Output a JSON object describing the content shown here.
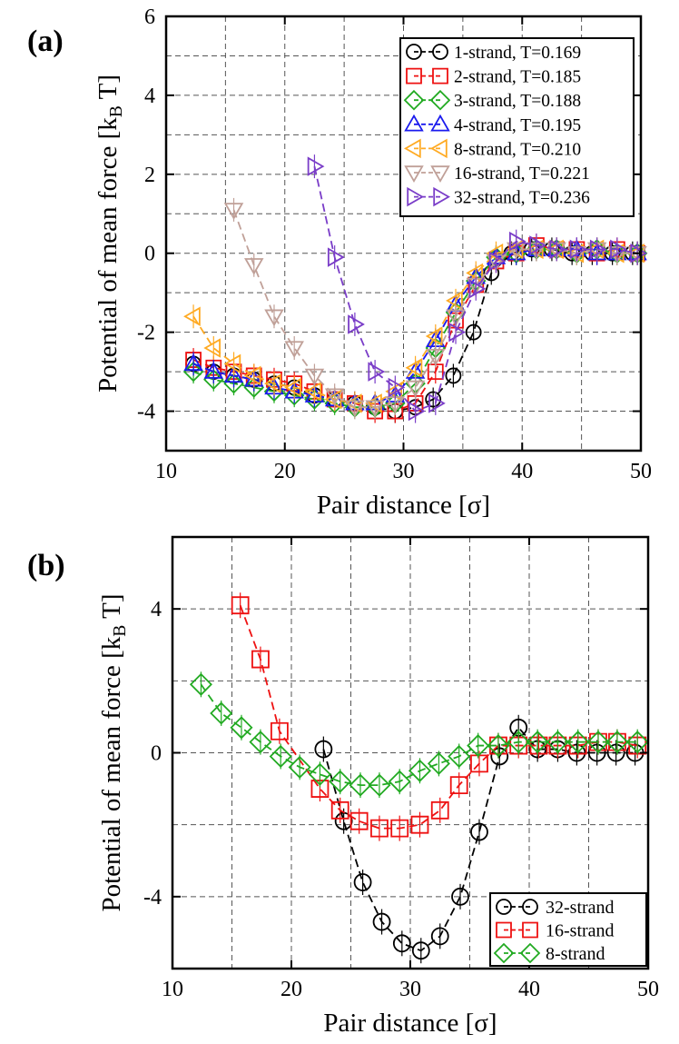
{
  "chart_data": [
    {
      "panel": "a",
      "panel_label": "(a)",
      "type": "line",
      "xlabel": "Pair distance [σ]",
      "ylabel_main": "Potential of mean force [k",
      "ylabel_sub": "B",
      "ylabel_end": " T]",
      "xlim": [
        10,
        50
      ],
      "ylim": [
        -5,
        6
      ],
      "xticks": [
        10,
        20,
        30,
        40,
        50
      ],
      "xtick_labels": [
        "10",
        "20",
        "30",
        "40",
        "50"
      ],
      "yticks": [
        -4,
        -2,
        0,
        2,
        4,
        6
      ],
      "ytick_labels": [
        "-4",
        "-2",
        "0",
        "2",
        "4",
        "6"
      ],
      "grid_x": [
        15,
        20,
        25,
        30,
        35,
        40,
        45
      ],
      "grid_y": [
        -4,
        -3,
        -2,
        -1,
        0,
        1,
        2,
        3,
        4,
        5
      ],
      "legend": "top-right",
      "series": [
        {
          "name": "1-strand, T=0.169",
          "color": "#000000",
          "marker": "circle",
          "x": [
            12.3,
            14.0,
            15.7,
            17.4,
            19.1,
            20.8,
            22.5,
            24.2,
            25.9,
            27.6,
            29.3,
            31.0,
            32.5,
            34.2,
            35.9,
            37.4,
            39.1,
            40.8,
            42.5,
            44.2,
            45.9,
            47.6,
            49.3
          ],
          "y": [
            -2.8,
            -3.0,
            -3.1,
            -3.2,
            -3.3,
            -3.4,
            -3.6,
            -3.7,
            -3.8,
            -3.9,
            -4.0,
            -3.9,
            -3.7,
            -3.1,
            -2.0,
            -0.5,
            0.0,
            0.1,
            0.1,
            0.0,
            0.0,
            0.0,
            0.0
          ]
        },
        {
          "name": "2-strand, T=0.185",
          "color": "#ee1111",
          "marker": "square",
          "x": [
            12.3,
            14.0,
            15.7,
            17.4,
            19.1,
            20.8,
            22.5,
            24.2,
            25.9,
            27.6,
            29.3,
            31.0,
            32.7,
            34.4,
            36.1,
            37.8,
            39.5,
            41.2,
            42.9,
            44.6,
            46.3,
            48.0,
            49.7
          ],
          "y": [
            -2.7,
            -2.9,
            -3.0,
            -3.1,
            -3.2,
            -3.3,
            -3.5,
            -3.7,
            -3.8,
            -4.0,
            -4.0,
            -3.8,
            -3.0,
            -1.7,
            -0.8,
            -0.2,
            0.0,
            0.2,
            0.1,
            0.1,
            0.0,
            0.1,
            0.0
          ]
        },
        {
          "name": "3-strand, T=0.188",
          "color": "#22aa22",
          "marker": "diamond",
          "x": [
            12.3,
            14.0,
            15.7,
            17.4,
            19.1,
            20.8,
            22.5,
            24.2,
            25.9,
            27.6,
            29.3,
            31.0,
            32.7,
            34.4,
            36.1,
            37.8,
            39.5,
            41.2,
            42.9,
            44.6,
            46.3,
            48.0,
            49.7
          ],
          "y": [
            -3.0,
            -3.2,
            -3.3,
            -3.4,
            -3.5,
            -3.6,
            -3.7,
            -3.8,
            -3.9,
            -3.9,
            -3.8,
            -3.3,
            -2.4,
            -1.5,
            -0.7,
            -0.1,
            0.0,
            0.1,
            0.1,
            0.0,
            0.1,
            0.0,
            0.0
          ]
        },
        {
          "name": "4-strand, T=0.195",
          "color": "#1a1aee",
          "marker": "triangle-up",
          "x": [
            12.3,
            14.0,
            15.7,
            17.4,
            19.1,
            20.8,
            22.5,
            24.2,
            25.9,
            27.6,
            29.3,
            31.0,
            32.7,
            34.4,
            36.1,
            37.8,
            39.5,
            41.2,
            42.9,
            44.6,
            46.3,
            48.0,
            49.7
          ],
          "y": [
            -2.8,
            -3.0,
            -3.1,
            -3.2,
            -3.4,
            -3.5,
            -3.6,
            -3.7,
            -3.8,
            -3.8,
            -3.6,
            -3.0,
            -2.2,
            -1.3,
            -0.6,
            -0.1,
            0.0,
            0.1,
            0.1,
            0.1,
            0.0,
            0.0,
            0.0
          ]
        },
        {
          "name": "8-strand, T=0.210",
          "color": "#ffaa22",
          "marker": "triangle-left",
          "x": [
            12.3,
            14.0,
            15.7,
            17.4,
            19.1,
            20.8,
            22.5,
            24.2,
            25.9,
            27.6,
            29.3,
            31.0,
            32.7,
            34.4,
            36.1,
            37.8,
            39.5,
            41.2,
            42.9,
            44.6,
            46.3,
            48.0,
            49.7
          ],
          "y": [
            -1.6,
            -2.4,
            -2.8,
            -3.1,
            -3.3,
            -3.4,
            -3.5,
            -3.7,
            -3.8,
            -3.8,
            -3.5,
            -2.9,
            -2.1,
            -1.2,
            -0.5,
            0.0,
            0.1,
            0.1,
            0.1,
            0.0,
            0.1,
            0.0,
            0.0
          ]
        },
        {
          "name": "16-strand, T=0.221",
          "color": "#c0a098",
          "marker": "triangle-down",
          "x": [
            15.7,
            17.4,
            19.1,
            20.8,
            22.5,
            24.2,
            25.9,
            27.6,
            29.3,
            31.0,
            32.7,
            34.4,
            36.1,
            37.8,
            39.5,
            41.2,
            42.9,
            44.6,
            46.3,
            48.0,
            49.7
          ],
          "y": [
            1.1,
            -0.3,
            -1.6,
            -2.4,
            -3.1,
            -3.6,
            -3.9,
            -3.9,
            -3.8,
            -3.4,
            -2.6,
            -1.6,
            -0.8,
            -0.2,
            0.1,
            0.1,
            0.1,
            0.0,
            0.1,
            0.0,
            0.0
          ]
        },
        {
          "name": "32-strand, T=0.236",
          "color": "#7a3dc8",
          "marker": "triangle-right",
          "x": [
            22.5,
            24.2,
            25.9,
            27.6,
            29.3,
            31.0,
            32.7,
            34.4,
            36.1,
            37.8,
            39.5,
            41.2,
            42.9,
            44.6,
            46.3,
            48.0,
            49.7
          ],
          "y": [
            2.2,
            -0.1,
            -1.8,
            -3.0,
            -3.4,
            -4.0,
            -3.8,
            -2.0,
            -0.9,
            -0.2,
            0.3,
            0.2,
            0.1,
            0.1,
            0.1,
            0.1,
            0.0
          ]
        }
      ]
    },
    {
      "panel": "b",
      "panel_label": "(b)",
      "type": "line",
      "xlabel": "Pair distance [σ]",
      "ylabel_main": "Potential of mean force [k",
      "ylabel_sub": "B",
      "ylabel_end": " T]",
      "xlim": [
        10,
        50
      ],
      "ylim": [
        -6,
        6
      ],
      "xticks": [
        10,
        20,
        30,
        40,
        50
      ],
      "xtick_labels": [
        "10",
        "20",
        "30",
        "40",
        "50"
      ],
      "yticks": [
        -4,
        0,
        4
      ],
      "ytick_labels": [
        "-4",
        "0",
        "4"
      ],
      "grid_x": [
        15,
        20,
        25,
        30,
        35,
        40,
        45
      ],
      "grid_y": [
        -4,
        -2,
        0,
        2,
        4
      ],
      "legend": "bottom-right",
      "series": [
        {
          "name": "32-strand",
          "color": "#000000",
          "marker": "circle",
          "x": [
            22.7,
            24.4,
            26.0,
            27.6,
            29.3,
            30.9,
            32.5,
            34.2,
            35.8,
            37.5,
            39.1,
            40.7,
            42.4,
            44.0,
            45.7,
            47.3,
            48.9
          ],
          "y": [
            0.1,
            -1.9,
            -3.6,
            -4.7,
            -5.3,
            -5.5,
            -5.1,
            -4.0,
            -2.2,
            -0.1,
            0.7,
            0.1,
            0.1,
            0.0,
            0.0,
            0.0,
            0.0
          ]
        },
        {
          "name": "16-strand",
          "color": "#ee1111",
          "marker": "square",
          "x": [
            15.7,
            17.4,
            19.0,
            22.4,
            24.1,
            25.7,
            27.4,
            29.1,
            30.8,
            32.5,
            34.1,
            35.8,
            37.4,
            39.1,
            40.8,
            42.4,
            44.1,
            45.8,
            47.4,
            49.1
          ],
          "y": [
            4.1,
            2.6,
            0.6,
            -1.0,
            -1.6,
            -1.9,
            -2.1,
            -2.1,
            -2.0,
            -1.6,
            -0.9,
            -0.3,
            0.2,
            0.2,
            0.2,
            0.2,
            0.2,
            0.3,
            0.3,
            0.2
          ]
        },
        {
          "name": "8-strand",
          "color": "#22aa22",
          "marker": "diamond",
          "x": [
            12.4,
            14.1,
            15.8,
            17.4,
            19.1,
            20.7,
            22.4,
            24.1,
            25.8,
            27.4,
            29.1,
            30.8,
            32.4,
            34.1,
            35.7,
            37.4,
            39.1,
            40.7,
            42.4,
            44.1,
            45.8,
            47.4,
            49.1
          ],
          "y": [
            1.9,
            1.1,
            0.7,
            0.3,
            -0.1,
            -0.4,
            -0.6,
            -0.8,
            -0.9,
            -0.9,
            -0.8,
            -0.5,
            -0.3,
            -0.1,
            0.2,
            0.2,
            0.3,
            0.3,
            0.3,
            0.3,
            0.3,
            0.3,
            0.3
          ]
        }
      ]
    }
  ]
}
